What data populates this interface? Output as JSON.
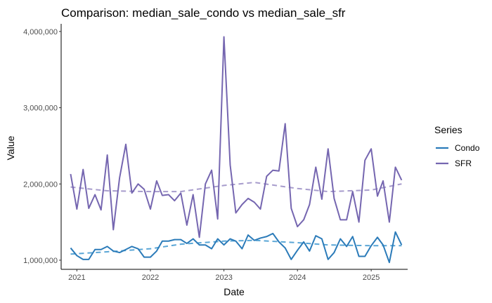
{
  "chart_data": {
    "type": "line",
    "title": "Comparison: median_sale_condo vs median_sale_sfr",
    "xlabel": "Date",
    "ylabel": "Value",
    "x_ticks": [
      "2021",
      "2022",
      "2023",
      "2024",
      "2025"
    ],
    "y_ticks": [
      "1,000,000",
      "2,000,000",
      "3,000,000",
      "4,000,000"
    ],
    "xlim": [
      "2020-10-15",
      "2025-07-01"
    ],
    "ylim": [
      880000,
      4100000
    ],
    "grid": false,
    "legend": {
      "title": "Series",
      "position": "right",
      "entries": [
        "Condo",
        "SFR"
      ]
    },
    "colors": {
      "Condo": "#2b7bb9",
      "CondoTrend": "#5aa6d6",
      "SFR": "#7566b0",
      "SFRTrend": "#a79ccc"
    },
    "series": [
      {
        "name": "Condo",
        "x": [
          "2020-12-01",
          "2021-01-01",
          "2021-02-01",
          "2021-03-01",
          "2021-04-01",
          "2021-05-01",
          "2021-06-01",
          "2021-07-01",
          "2021-08-01",
          "2021-09-01",
          "2021-10-01",
          "2021-11-01",
          "2021-12-01",
          "2022-01-01",
          "2022-02-01",
          "2022-03-01",
          "2022-04-01",
          "2022-05-01",
          "2022-06-01",
          "2022-07-01",
          "2022-08-01",
          "2022-09-01",
          "2022-10-01",
          "2022-11-01",
          "2022-12-01",
          "2023-01-01",
          "2023-02-01",
          "2023-03-01",
          "2023-04-01",
          "2023-05-01",
          "2023-06-01",
          "2023-07-01",
          "2023-08-01",
          "2023-09-01",
          "2023-10-01",
          "2023-11-01",
          "2023-12-01",
          "2024-01-01",
          "2024-02-01",
          "2024-03-01",
          "2024-04-01",
          "2024-05-01",
          "2024-06-01",
          "2024-07-01",
          "2024-08-01",
          "2024-09-01",
          "2024-10-01",
          "2024-11-01",
          "2024-12-01",
          "2025-01-01",
          "2025-02-01",
          "2025-03-01",
          "2025-04-01",
          "2025-05-01",
          "2025-06-01"
        ],
        "values": [
          1160000,
          1060000,
          1010000,
          1010000,
          1140000,
          1140000,
          1180000,
          1120000,
          1100000,
          1140000,
          1180000,
          1150000,
          1040000,
          1040000,
          1120000,
          1250000,
          1250000,
          1270000,
          1270000,
          1220000,
          1280000,
          1200000,
          1200000,
          1150000,
          1280000,
          1200000,
          1280000,
          1250000,
          1150000,
          1330000,
          1260000,
          1290000,
          1310000,
          1350000,
          1240000,
          1160000,
          1010000,
          1130000,
          1240000,
          1120000,
          1320000,
          1280000,
          1010000,
          1100000,
          1280000,
          1180000,
          1310000,
          1050000,
          1050000,
          1190000,
          1300000,
          1200000,
          970000,
          1370000,
          1200000
        ]
      },
      {
        "name": "SFR",
        "x": [
          "2020-12-01",
          "2021-01-01",
          "2021-02-01",
          "2021-03-01",
          "2021-04-01",
          "2021-05-01",
          "2021-06-01",
          "2021-07-01",
          "2021-08-01",
          "2021-09-01",
          "2021-10-01",
          "2021-11-01",
          "2021-12-01",
          "2022-01-01",
          "2022-02-01",
          "2022-03-01",
          "2022-04-01",
          "2022-05-01",
          "2022-06-01",
          "2022-07-01",
          "2022-08-01",
          "2022-09-01",
          "2022-10-01",
          "2022-11-01",
          "2022-12-01",
          "2023-01-01",
          "2023-02-01",
          "2023-03-01",
          "2023-04-01",
          "2023-05-01",
          "2023-06-01",
          "2023-07-01",
          "2023-08-01",
          "2023-09-01",
          "2023-10-01",
          "2023-11-01",
          "2023-12-01",
          "2024-01-01",
          "2024-02-01",
          "2024-03-01",
          "2024-04-01",
          "2024-05-01",
          "2024-06-01",
          "2024-07-01",
          "2024-08-01",
          "2024-09-01",
          "2024-10-01",
          "2024-11-01",
          "2024-12-01",
          "2025-01-01",
          "2025-02-01",
          "2025-03-01",
          "2025-04-01",
          "2025-05-01",
          "2025-06-01"
        ],
        "values": [
          2130000,
          1670000,
          2190000,
          1680000,
          1860000,
          1660000,
          2380000,
          1400000,
          2080000,
          2520000,
          1880000,
          2000000,
          1930000,
          1670000,
          2040000,
          1850000,
          1860000,
          1780000,
          1880000,
          1460000,
          1860000,
          1300000,
          2000000,
          2180000,
          1540000,
          3930000,
          2250000,
          1620000,
          1730000,
          1810000,
          1760000,
          1670000,
          2100000,
          2180000,
          2170000,
          2790000,
          1680000,
          1440000,
          1530000,
          1730000,
          2220000,
          1800000,
          2460000,
          1810000,
          1530000,
          1530000,
          1900000,
          1500000,
          2310000,
          2460000,
          1840000,
          2040000,
          1500000,
          2220000,
          2050000
        ]
      }
    ],
    "trend_lines": [
      {
        "series": "Condo",
        "style": "dashed",
        "x": [
          "2020-12-01",
          "2021-06-01",
          "2022-01-01",
          "2022-06-01",
          "2023-01-01",
          "2023-06-01",
          "2024-01-01",
          "2024-06-01",
          "2025-01-01",
          "2025-06-01"
        ],
        "values": [
          1080000,
          1110000,
          1150000,
          1210000,
          1250000,
          1260000,
          1230000,
          1200000,
          1190000,
          1190000
        ]
      },
      {
        "series": "SFR",
        "style": "dashed",
        "x": [
          "2020-12-01",
          "2021-06-01",
          "2022-01-01",
          "2022-06-01",
          "2023-01-01",
          "2023-06-01",
          "2024-01-01",
          "2024-06-01",
          "2025-01-01",
          "2025-06-01"
        ],
        "values": [
          1960000,
          1910000,
          1900000,
          1900000,
          1980000,
          2020000,
          1940000,
          1900000,
          1920000,
          2000000
        ]
      }
    ]
  }
}
